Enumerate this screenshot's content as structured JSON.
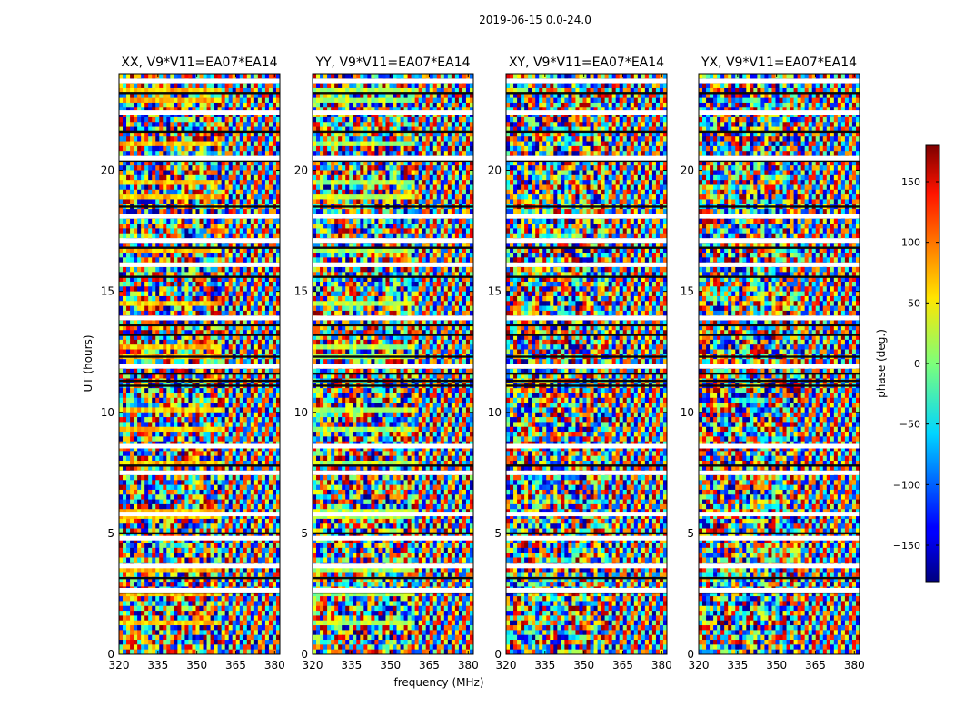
{
  "chart_data": {
    "type": "heatmap",
    "suptitle": "2019-06-15 0.0-24.0",
    "xlabel": "frequency (MHz)",
    "ylabel": "UT (hours)",
    "xlim": [
      320,
      382
    ],
    "ylim": [
      0,
      24
    ],
    "xticks": [
      320,
      335,
      350,
      365,
      380
    ],
    "yticks": [
      0,
      5,
      10,
      15,
      20
    ],
    "panels": [
      {
        "title": "XX, V9*V11=EA07*EA14",
        "polarization": "XX"
      },
      {
        "title": "YY, V9*V11=EA07*EA14",
        "polarization": "YY"
      },
      {
        "title": "XY, V9*V11=EA07*EA14",
        "polarization": "XY"
      },
      {
        "title": "YX, V9*V11=EA07*EA14",
        "polarization": "YX"
      }
    ],
    "colorbar": {
      "label": "phase (deg.)",
      "range": [
        -180,
        180
      ],
      "ticks": [
        -150,
        -100,
        -50,
        0,
        50,
        100,
        150
      ],
      "colormap": "jet"
    },
    "gaps_ut_hours": [
      2.65,
      3.65,
      4.8,
      5.8,
      7.5,
      8.6,
      11.9,
      13.9,
      16.1,
      17.1,
      18.1,
      20.5,
      22.4,
      23.7
    ],
    "dark_line_ut_hours": [
      2.55,
      3.15,
      5.0,
      7.8,
      11.1,
      11.3,
      11.6,
      12.3,
      13.2,
      13.6,
      15.6,
      16.8,
      18.5,
      20.4,
      21.6,
      23.2
    ]
  }
}
